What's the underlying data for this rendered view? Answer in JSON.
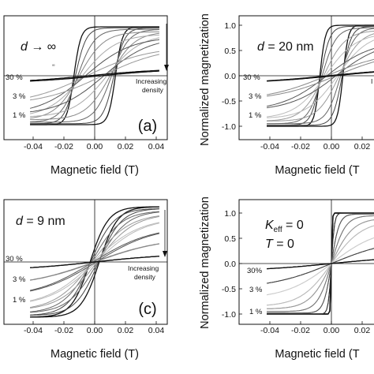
{
  "chart_data": [
    {
      "type": "line",
      "title": "d → ∞",
      "panel_label": "(a)",
      "xlabel": "Magnetic field (T)",
      "ylabel": "",
      "xlim": [
        -0.045,
        0.045
      ],
      "ylim": [
        -1.2,
        1.2
      ],
      "xticks": [
        "-0.04",
        "-0.02",
        "0.00",
        "0.02",
        "0.04"
      ],
      "yticks": [],
      "density_labels": [
        "30 %",
        "3 %",
        "1 %"
      ],
      "annotation": [
        "Increasing",
        "density"
      ],
      "has_arrow": true,
      "series": [
        {
          "density": "1 %",
          "coercive_field": 0.013,
          "remanence": 0.35,
          "saturation": 1.0
        },
        {
          "density": "3 %",
          "coercive_field": 0.011,
          "remanence": 0.3,
          "saturation": 0.85
        },
        {
          "density": "30 %",
          "coercive_field": 0.004,
          "remanence": 0.05,
          "saturation": 0.1
        }
      ]
    },
    {
      "type": "line",
      "title": "d = 20 nm",
      "xlabel": "Magnetic field (T",
      "ylabel": "Normalized magnetization",
      "xlim": [
        -0.045,
        0.045
      ],
      "ylim": [
        -1.2,
        1.2
      ],
      "xticks": [
        "-0.04",
        "-0.02",
        "0.00",
        "0.02"
      ],
      "yticks": [
        "1.0",
        "0.5",
        "0.0",
        "-0.5",
        "-1.0"
      ],
      "density_labels": [
        "30 %",
        "3 %",
        "1 %"
      ],
      "annotation": [
        "I"
      ],
      "series": [
        {
          "density": "1 %",
          "coercive_field": 0.007,
          "remanence": 0.5,
          "saturation": 1.0
        },
        {
          "density": "3 %",
          "coercive_field": 0.006,
          "remanence": 0.35,
          "saturation": 0.85
        },
        {
          "density": "30 %",
          "coercive_field": 0.003,
          "remanence": 0.05,
          "saturation": 0.1
        }
      ]
    },
    {
      "type": "line",
      "title": "d = 9 nm",
      "panel_label": "(c)",
      "xlabel": "Magnetic field (T)",
      "ylabel": "",
      "xlim": [
        -0.045,
        0.045
      ],
      "ylim": [
        -1.2,
        1.2
      ],
      "xticks": [
        "-0.04",
        "-0.02",
        "0.00",
        "0.02",
        "0.04"
      ],
      "yticks": [],
      "density_labels": [
        "30 %",
        "3 %",
        "1 %"
      ],
      "annotation": [
        "Increasing",
        "density"
      ],
      "has_arrow": true,
      "series": [
        {
          "density": "1 %",
          "coercive_field": 0.003,
          "remanence": 0.15,
          "saturation": 1.0
        },
        {
          "density": "3 %",
          "coercive_field": 0.002,
          "remanence": 0.1,
          "saturation": 0.8
        },
        {
          "density": "30 %",
          "coercive_field": 0.0,
          "remanence": 0.0,
          "saturation": 0.12
        }
      ]
    },
    {
      "type": "line",
      "title": "K_eff = 0, T = 0",
      "xlabel": "Magnetic field (T",
      "ylabel": "Normalized magnetization",
      "xlim": [
        -0.045,
        0.045
      ],
      "ylim": [
        -1.2,
        1.2
      ],
      "xticks": [
        "-0.04",
        "-0.02",
        "0.00",
        "0.02"
      ],
      "yticks": [
        "1.0",
        "0.5",
        "0.0",
        "-0.5",
        "-1.0"
      ],
      "density_labels": [
        "30%",
        "3 %",
        "1 %"
      ],
      "series": [
        {
          "density": "1 %",
          "coercive_field": 0.0,
          "remanence": 0.0,
          "saturation": 1.0
        },
        {
          "density": "3 %",
          "coercive_field": 0.0,
          "remanence": 0.0,
          "saturation": 0.8
        },
        {
          "density": "30 %",
          "coercive_field": 0.0,
          "remanence": 0.0,
          "saturation": 0.15
        }
      ]
    }
  ],
  "text": {
    "a_title_d": "d",
    "a_title_rest": " → ∞",
    "b_title_d": "d",
    "b_title_rest": " = 20 nm",
    "c_title_d": "d",
    "c_title_rest": " = 9 nm",
    "d_title_k": "K",
    "d_title_ksub": "eff",
    "d_title_k_rest": " = 0",
    "d_title_t": "T",
    "d_title_t_rest": " = 0",
    "a_panel": "(a)",
    "c_panel": "(c)",
    "increasing": "Increasing",
    "density": "density",
    "b_cut_annotation": "I",
    "b_ylabel": "Normalized magnetization",
    "d_ylabel": "Normalized magnetization",
    "a_xlabel": "Magnetic field (T)",
    "b_xlabel": "Magnetic field (T",
    "c_xlabel": "Magnetic field (T)",
    "d_xlabel": "Magnetic field (T",
    "tiny_mark": "∞"
  }
}
